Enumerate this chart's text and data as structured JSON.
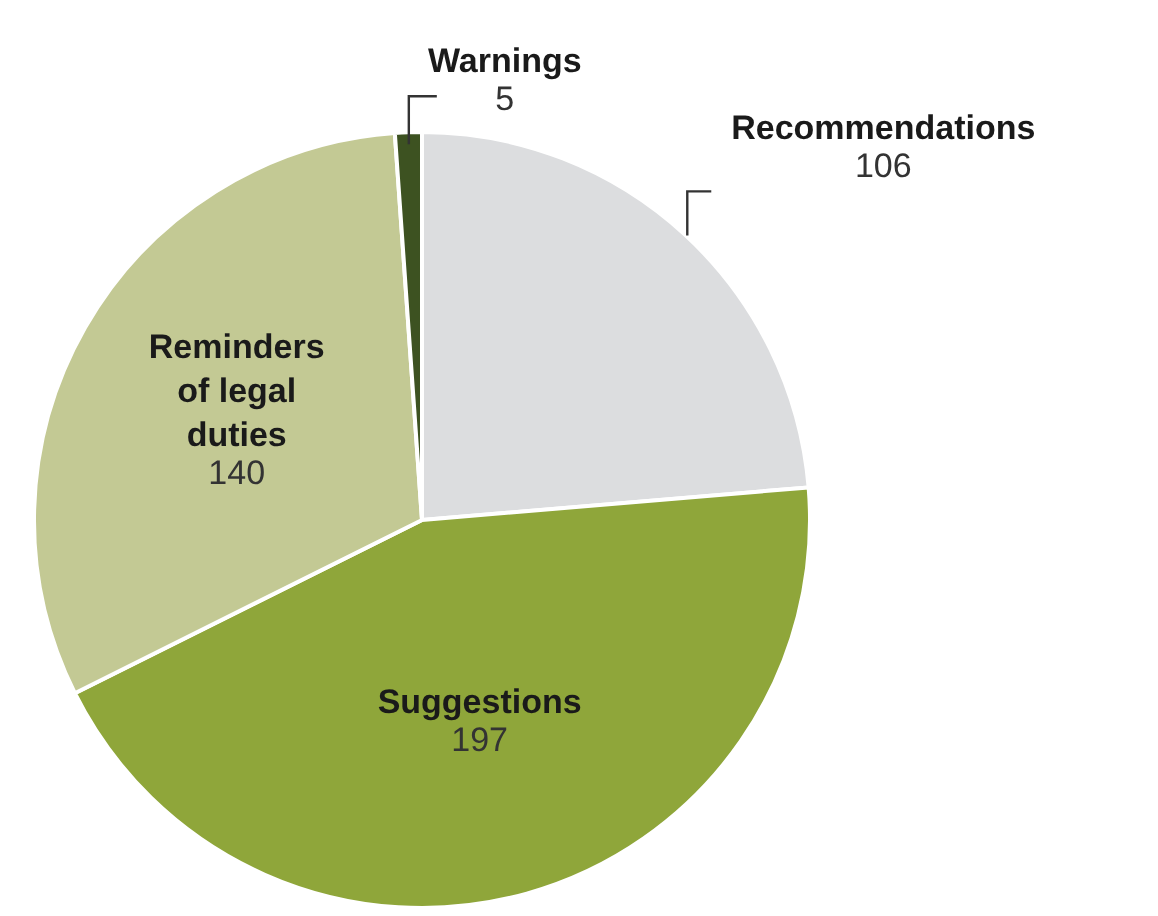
{
  "chart_data": {
    "type": "pie",
    "categories": [
      "Recommendations",
      "Suggestions",
      "Reminders of legal duties",
      "Warnings"
    ],
    "values": [
      106,
      197,
      140,
      5
    ],
    "colors": [
      "#dcdddf",
      "#8fa63a",
      "#c3c994",
      "#3d5221"
    ],
    "data_labels": true,
    "legend": false
  }
}
